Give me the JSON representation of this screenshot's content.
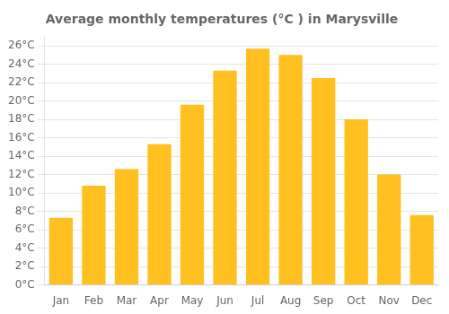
{
  "chart_data": {
    "type": "bar",
    "title": "Average monthly temperatures (°C ) in Marysville",
    "categories": [
      "Jan",
      "Feb",
      "Mar",
      "Apr",
      "May",
      "Jun",
      "Jul",
      "Aug",
      "Sep",
      "Oct",
      "Nov",
      "Dec"
    ],
    "values": [
      7.3,
      10.8,
      12.6,
      15.3,
      19.6,
      23.3,
      25.7,
      25.0,
      22.5,
      18.0,
      12.0,
      7.6
    ],
    "color": "#FFC020",
    "ylim": [
      0,
      27
    ],
    "yticks": [
      {
        "value": 0,
        "label": "0°C"
      },
      {
        "value": 2,
        "label": "2°C"
      },
      {
        "value": 4,
        "label": "4°C"
      },
      {
        "value": 6,
        "label": "6°C"
      },
      {
        "value": 8,
        "label": "8°C"
      },
      {
        "value": 10,
        "label": "10°C"
      },
      {
        "value": 12,
        "label": "12°C"
      },
      {
        "value": 14,
        "label": "14°C"
      },
      {
        "value": 16,
        "label": "16°C"
      },
      {
        "value": 18,
        "label": "18°C"
      },
      {
        "value": 20,
        "label": "20°C"
      },
      {
        "value": 22,
        "label": "22°C"
      },
      {
        "value": 24,
        "label": "24°C"
      },
      {
        "value": 26,
        "label": "26°C"
      }
    ],
    "grid": true
  }
}
